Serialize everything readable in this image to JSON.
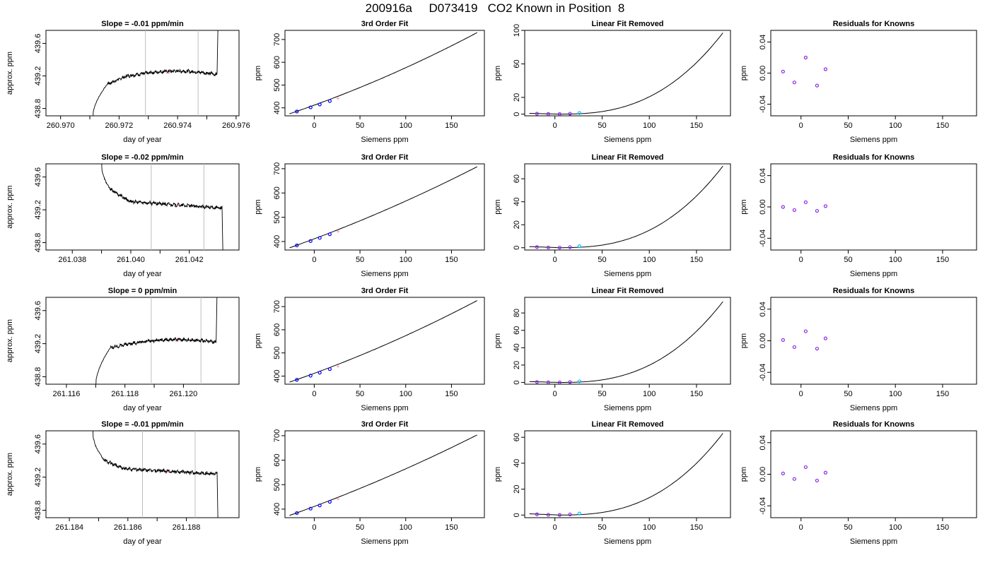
{
  "figure": {
    "title": "200916a     D073419   CO2 Known in Position  8"
  },
  "colors": {
    "axis": "#000000",
    "marker_lines": "#bebebe",
    "known_points": "#0000ff",
    "extra_point": "#ff69b4",
    "residual_points": "#8a2be2",
    "cyan_point": "#00bfff"
  },
  "chart_data": [
    {
      "type": "line",
      "title": "Slope =  -0.01  ppm/min",
      "xlabel": "day of year",
      "ylabel": "approx. ppm",
      "xlim": [
        260.9695,
        260.9761
      ],
      "ylim": [
        438.71,
        439.76
      ],
      "xticks": [
        260.97,
        260.972,
        260.974,
        260.976
      ],
      "xtick_labels": [
        "260.970",
        "260.972",
        "260.974",
        "260.976"
      ],
      "yticks": [
        438.8,
        439.2,
        439.6
      ],
      "ytick_labels": [
        "438.8",
        "439.2",
        "439.6"
      ],
      "vlines": [
        260.9729,
        260.9747
      ],
      "pink_x": 260.97368,
      "shape": {
        "start": 260.9711,
        "rise_end": 260.9716,
        "rise_to": 439.1,
        "plateau": [
          439.2,
          439.26
        ],
        "tail_start": 260.97535,
        "tail_end_y": 439.76,
        "mode": "rise"
      }
    },
    {
      "type": "line",
      "title": "Slope =  -0.02  ppm/min",
      "xlabel": "day of year",
      "ylabel": "approx. ppm",
      "xlim": [
        261.0371,
        261.0437
      ],
      "ylim": [
        438.71,
        439.76
      ],
      "xticks": [
        261.038,
        261.04,
        261.042
      ],
      "xtick_labels": [
        "261.038",
        "261.040",
        "261.042"
      ],
      "yticks": [
        438.8,
        439.2,
        439.6
      ],
      "ytick_labels": [
        "438.8",
        "439.2",
        "439.6"
      ],
      "vlines": [
        261.0407,
        261.0425
      ],
      "pink_x": 261.04158,
      "shape": {
        "start": 261.039,
        "rise_end": 261.0393,
        "rise_to": 439.45,
        "plateau": [
          439.3,
          439.22
        ],
        "tail_start": 261.04312,
        "tail_end_y": 438.71,
        "mode": "fall"
      }
    },
    {
      "type": "line",
      "title": "Slope =  0  ppm/min",
      "xlabel": "day of year",
      "ylabel": "approx. ppm",
      "xlim": [
        261.1153,
        261.1219
      ],
      "ylim": [
        438.71,
        439.76
      ],
      "xticks": [
        261.116,
        261.118,
        261.12
      ],
      "xtick_labels": [
        "261.116",
        "261.118",
        "261.120"
      ],
      "yticks": [
        438.8,
        439.2,
        439.6
      ],
      "ytick_labels": [
        "438.8",
        "439.2",
        "439.6"
      ],
      "vlines": [
        261.1189,
        261.1206
      ],
      "pink_x": 261.11978,
      "shape": {
        "start": 261.117,
        "rise_end": 261.1175,
        "rise_to": 439.15,
        "plateau": [
          439.2,
          439.25
        ],
        "tail_start": 261.12112,
        "tail_end_y": 439.76,
        "mode": "rise"
      }
    },
    {
      "type": "line",
      "title": "Slope =  -0.01  ppm/min",
      "xlabel": "day of year",
      "ylabel": "approx. ppm",
      "xlim": [
        261.1832,
        261.1898
      ],
      "ylim": [
        438.71,
        439.76
      ],
      "xticks": [
        261.184,
        261.186,
        261.188
      ],
      "xtick_labels": [
        "261.184",
        "261.186",
        "261.188"
      ],
      "yticks": [
        438.8,
        439.2,
        439.6
      ],
      "ytick_labels": [
        "438.8",
        "439.2",
        "439.6"
      ],
      "vlines": [
        261.1865,
        261.1883
      ],
      "pink_x": 261.18738,
      "shape": {
        "start": 261.1848,
        "rise_end": 261.1852,
        "rise_to": 439.4,
        "plateau": [
          439.3,
          439.24
        ],
        "tail_start": 261.18905,
        "tail_end_y": 438.71,
        "mode": "fall"
      }
    },
    {
      "type": "line",
      "title": "3rd Order Fit",
      "xlabel": "Siemens ppm",
      "ylabel": "ppm",
      "xlim": [
        -32,
        186
      ],
      "ylim": [
        365,
        740
      ],
      "xticks": [
        0,
        50,
        100,
        150
      ],
      "xtick_labels": [
        "0",
        "50",
        "100",
        "150"
      ],
      "yticks": [
        400,
        500,
        600,
        700
      ],
      "ytick_labels": [
        "400",
        "500",
        "600",
        "700"
      ],
      "curve": {
        "x0": -27,
        "x1": 178,
        "y0": 374,
        "y1": 730,
        "k": 0.22
      },
      "points": [
        {
          "x": -19,
          "y": 384
        },
        {
          "x": -4,
          "y": 402
        },
        {
          "x": 6,
          "y": 415
        },
        {
          "x": 17,
          "y": 430
        }
      ],
      "pink_points": [
        {
          "x": 26,
          "y": 441
        }
      ]
    },
    {
      "type": "line",
      "title": "3rd Order Fit",
      "xlabel": "Siemens ppm",
      "ylabel": "ppm",
      "xlim": [
        -32,
        186
      ],
      "ylim": [
        365,
        720
      ],
      "xticks": [
        0,
        50,
        100,
        150
      ],
      "xtick_labels": [
        "0",
        "50",
        "100",
        "150"
      ],
      "yticks": [
        400,
        500,
        600,
        700
      ],
      "ytick_labels": [
        "400",
        "500",
        "600",
        "700"
      ],
      "curve": {
        "x0": -27,
        "x1": 178,
        "y0": 374,
        "y1": 708,
        "k": 0.18
      },
      "points": [
        {
          "x": -19,
          "y": 384
        },
        {
          "x": -4,
          "y": 402
        },
        {
          "x": 6,
          "y": 415
        },
        {
          "x": 17,
          "y": 430
        }
      ],
      "pink_points": [
        {
          "x": 26,
          "y": 441
        }
      ]
    },
    {
      "type": "line",
      "title": "3rd Order Fit",
      "xlabel": "Siemens ppm",
      "ylabel": "ppm",
      "xlim": [
        -32,
        186
      ],
      "ylim": [
        365,
        740
      ],
      "xticks": [
        0,
        50,
        100,
        150
      ],
      "xtick_labels": [
        "0",
        "50",
        "100",
        "150"
      ],
      "yticks": [
        400,
        500,
        600,
        700
      ],
      "ytick_labels": [
        "400",
        "500",
        "600",
        "700"
      ],
      "curve": {
        "x0": -27,
        "x1": 178,
        "y0": 374,
        "y1": 726,
        "k": 0.21
      },
      "points": [
        {
          "x": -19,
          "y": 384
        },
        {
          "x": -4,
          "y": 402
        },
        {
          "x": 6,
          "y": 415
        },
        {
          "x": 17,
          "y": 430
        }
      ],
      "pink_points": [
        {
          "x": 26,
          "y": 441
        }
      ]
    },
    {
      "type": "line",
      "title": "3rd Order Fit",
      "xlabel": "Siemens ppm",
      "ylabel": "ppm",
      "xlim": [
        -32,
        186
      ],
      "ylim": [
        365,
        720
      ],
      "xticks": [
        0,
        50,
        100,
        150
      ],
      "xtick_labels": [
        "0",
        "50",
        "100",
        "150"
      ],
      "yticks": [
        400,
        500,
        600,
        700
      ],
      "ytick_labels": [
        "400",
        "500",
        "600",
        "700"
      ],
      "curve": {
        "x0": -27,
        "x1": 178,
        "y0": 374,
        "y1": 703,
        "k": 0.17
      },
      "points": [
        {
          "x": -19,
          "y": 384
        },
        {
          "x": -4,
          "y": 402
        },
        {
          "x": 6,
          "y": 415
        },
        {
          "x": 17,
          "y": 430
        }
      ],
      "pink_points": [
        {
          "x": 26,
          "y": 441
        }
      ]
    },
    {
      "type": "line",
      "title": "Linear Fit Removed",
      "xlabel": "Siemens ppm",
      "ylabel": "ppm",
      "xlim": [
        -32,
        186
      ],
      "ylim": [
        -2,
        100
      ],
      "xticks": [
        0,
        50,
        100,
        150
      ],
      "xtick_labels": [
        "0",
        "50",
        "100",
        "150"
      ],
      "yticks": [
        0,
        20,
        60,
        100
      ],
      "ytick_labels": [
        "0",
        "20",
        "60",
        "100"
      ],
      "curve": {
        "kind": "resid",
        "x0": -27,
        "x1": 178,
        "ymin_x": 4,
        "y1": 97
      },
      "points": [
        {
          "x": -19,
          "y": 0.6
        },
        {
          "x": -7,
          "y": 0.2
        },
        {
          "x": 5,
          "y": 0.1
        },
        {
          "x": 16,
          "y": 0.5
        }
      ],
      "cyan_points": [
        {
          "x": 26,
          "y": 1.4
        }
      ]
    },
    {
      "type": "line",
      "title": "Linear Fit Removed",
      "xlabel": "Siemens ppm",
      "ylabel": "ppm",
      "xlim": [
        -32,
        186
      ],
      "ylim": [
        -2,
        73
      ],
      "xticks": [
        0,
        50,
        100,
        150
      ],
      "xtick_labels": [
        "0",
        "50",
        "100",
        "150"
      ],
      "yticks": [
        0,
        20,
        40,
        60
      ],
      "ytick_labels": [
        "0",
        "20",
        "40",
        "60"
      ],
      "curve": {
        "kind": "resid",
        "x0": -27,
        "x1": 178,
        "ymin_x": 4,
        "y1": 71
      },
      "points": [
        {
          "x": -19,
          "y": 0.6
        },
        {
          "x": -7,
          "y": 0.2
        },
        {
          "x": 5,
          "y": 0.1
        },
        {
          "x": 16,
          "y": 0.5
        }
      ],
      "cyan_points": [
        {
          "x": 26,
          "y": 1.3
        }
      ]
    },
    {
      "type": "line",
      "title": "Linear Fit Removed",
      "xlabel": "Siemens ppm",
      "ylabel": "ppm",
      "xlim": [
        -32,
        186
      ],
      "ylim": [
        -2,
        98
      ],
      "xticks": [
        0,
        50,
        100,
        150
      ],
      "xtick_labels": [
        "0",
        "50",
        "100",
        "150"
      ],
      "yticks": [
        0,
        20,
        40,
        60,
        80
      ],
      "ytick_labels": [
        "0",
        "20",
        "40",
        "60",
        "80"
      ],
      "curve": {
        "kind": "resid",
        "x0": -27,
        "x1": 178,
        "ymin_x": 4,
        "y1": 93
      },
      "points": [
        {
          "x": -19,
          "y": 0.6
        },
        {
          "x": -7,
          "y": 0.2
        },
        {
          "x": 5,
          "y": 0.1
        },
        {
          "x": 16,
          "y": 0.5
        }
      ],
      "cyan_points": [
        {
          "x": 26,
          "y": 1.3
        }
      ]
    },
    {
      "type": "line",
      "title": "Linear Fit Removed",
      "xlabel": "Siemens ppm",
      "ylabel": "ppm",
      "xlim": [
        -32,
        186
      ],
      "ylim": [
        -2,
        65
      ],
      "xticks": [
        0,
        50,
        100,
        150
      ],
      "xtick_labels": [
        "0",
        "50",
        "100",
        "150"
      ],
      "yticks": [
        0,
        20,
        40,
        60
      ],
      "ytick_labels": [
        "0",
        "20",
        "40",
        "60"
      ],
      "curve": {
        "kind": "resid",
        "x0": -27,
        "x1": 178,
        "ymin_x": 4,
        "y1": 63
      },
      "points": [
        {
          "x": -19,
          "y": 0.6
        },
        {
          "x": -7,
          "y": 0.2
        },
        {
          "x": 5,
          "y": 0.1
        },
        {
          "x": 16,
          "y": 0.5
        }
      ],
      "cyan_points": [
        {
          "x": 26,
          "y": 1.2
        }
      ]
    },
    {
      "type": "scatter",
      "title": "Residuals for Knowns",
      "xlabel": "Siemens ppm",
      "ylabel": "ppm",
      "xlim": [
        -32,
        186
      ],
      "ylim": [
        -0.055,
        0.055
      ],
      "xticks": [
        0,
        50,
        100,
        150
      ],
      "xtick_labels": [
        "0",
        "50",
        "100",
        "150"
      ],
      "yticks": [
        -0.04,
        0.0,
        0.04
      ],
      "ytick_labels": [
        "-0.04",
        "0.00",
        "0.04"
      ],
      "points": [
        {
          "x": -19,
          "y": 0.002
        },
        {
          "x": -7,
          "y": -0.012
        },
        {
          "x": 5,
          "y": 0.02
        },
        {
          "x": 17,
          "y": -0.016
        },
        {
          "x": 26,
          "y": 0.005
        }
      ]
    },
    {
      "type": "scatter",
      "title": "Residuals for Knowns",
      "xlabel": "Siemens ppm",
      "ylabel": "ppm",
      "xlim": [
        -32,
        186
      ],
      "ylim": [
        -0.055,
        0.055
      ],
      "xticks": [
        0,
        50,
        100,
        150
      ],
      "xtick_labels": [
        "0",
        "50",
        "100",
        "150"
      ],
      "yticks": [
        -0.04,
        0.0,
        0.04
      ],
      "ytick_labels": [
        "-0.04",
        "0.00",
        "0.04"
      ],
      "points": [
        {
          "x": -19,
          "y": 0.0
        },
        {
          "x": -7,
          "y": -0.004
        },
        {
          "x": 5,
          "y": 0.006
        },
        {
          "x": 17,
          "y": -0.005
        },
        {
          "x": 26,
          "y": 0.001
        }
      ]
    },
    {
      "type": "scatter",
      "title": "Residuals for Knowns",
      "xlabel": "Siemens ppm",
      "ylabel": "ppm",
      "xlim": [
        -32,
        186
      ],
      "ylim": [
        -0.055,
        0.055
      ],
      "xticks": [
        0,
        50,
        100,
        150
      ],
      "xtick_labels": [
        "0",
        "50",
        "100",
        "150"
      ],
      "yticks": [
        -0.04,
        0.0,
        0.04
      ],
      "ytick_labels": [
        "-0.04",
        "0.00",
        "0.04"
      ],
      "points": [
        {
          "x": -19,
          "y": 0.001
        },
        {
          "x": -7,
          "y": -0.008
        },
        {
          "x": 5,
          "y": 0.012
        },
        {
          "x": 17,
          "y": -0.01
        },
        {
          "x": 26,
          "y": 0.003
        }
      ]
    },
    {
      "type": "scatter",
      "title": "Residuals for Knowns",
      "xlabel": "Siemens ppm",
      "ylabel": "ppm",
      "xlim": [
        -32,
        186
      ],
      "ylim": [
        -0.055,
        0.055
      ],
      "xticks": [
        0,
        50,
        100,
        150
      ],
      "xtick_labels": [
        "0",
        "50",
        "100",
        "150"
      ],
      "yticks": [
        -0.04,
        0.0,
        0.04
      ],
      "ytick_labels": [
        "-0.04",
        "0.00",
        "0.04"
      ],
      "points": [
        {
          "x": -19,
          "y": 0.001
        },
        {
          "x": -7,
          "y": -0.006
        },
        {
          "x": 5,
          "y": 0.009
        },
        {
          "x": 17,
          "y": -0.008
        },
        {
          "x": 26,
          "y": 0.002
        }
      ]
    }
  ]
}
